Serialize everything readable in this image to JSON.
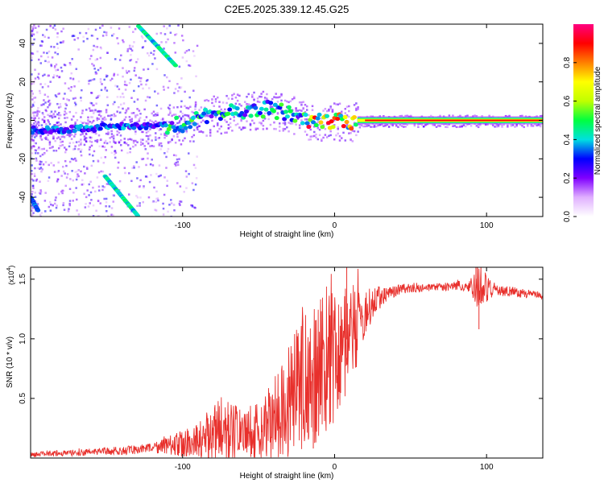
{
  "title": "C2E5.2025.339.12.45.G25",
  "chart_data": [
    {
      "type": "heatmap",
      "name": "spectrogram",
      "xlabel": "Height of straight line (km)",
      "ylabel": "Frequency (Hz)",
      "xlim": [
        -200,
        137
      ],
      "ylim": [
        -50,
        50
      ],
      "xticks": [
        -100,
        0,
        100
      ],
      "xtick_labels": [
        "-100",
        "0",
        "100"
      ],
      "yticks": [
        -40,
        -20,
        0,
        20,
        40
      ],
      "ytick_labels": [
        "-40",
        "-20",
        "0",
        "20",
        "40"
      ],
      "colorbar": {
        "label": "Normalized spectral amplitude",
        "range": [
          0,
          1
        ],
        "ticks": [
          0.0,
          0.2,
          0.4,
          0.6,
          0.8
        ],
        "tick_labels": [
          "0.0",
          "0.2",
          "0.4",
          "0.6",
          "0.8"
        ],
        "stops": [
          "#ffffff",
          "#e0b0ff",
          "#8000ff",
          "#0000ff",
          "#00e0e0",
          "#00ff40",
          "#c0ff00",
          "#ffff00",
          "#ff8000",
          "#ff0000",
          "#ff0080"
        ]
      },
      "main_trace": [
        {
          "x": -195,
          "y": -5
        },
        {
          "x": -180,
          "y": -5
        },
        {
          "x": -160,
          "y": -4
        },
        {
          "x": -140,
          "y": -3
        },
        {
          "x": -120,
          "y": -3
        },
        {
          "x": -100,
          "y": -2
        },
        {
          "x": -80,
          "y": 3
        },
        {
          "x": -60,
          "y": 5
        },
        {
          "x": -45,
          "y": 6
        },
        {
          "x": -30,
          "y": 4
        },
        {
          "x": -20,
          "y": 0
        },
        {
          "x": -10,
          "y": -1
        },
        {
          "x": 0,
          "y": 0
        },
        {
          "x": 10,
          "y": -1
        },
        {
          "x": 20,
          "y": 0
        },
        {
          "x": 60,
          "y": 0
        },
        {
          "x": 100,
          "y": 0
        },
        {
          "x": 137,
          "y": 0
        }
      ],
      "steady_band": {
        "x_start": 15,
        "x_end": 137,
        "y": 0,
        "amplitude": 0.9
      },
      "diagonal_traces": [
        {
          "points": [
            {
              "x": -129,
              "y": 49
            },
            {
              "x": -104,
              "y": 28
            }
          ],
          "amplitude": 0.35
        },
        {
          "points": [
            {
              "x": -151,
              "y": -29
            },
            {
              "x": -129,
              "y": -50
            }
          ],
          "amplitude": 0.35
        },
        {
          "points": [
            {
              "x": -200,
              "y": -40
            },
            {
              "x": -195,
              "y": -47
            }
          ],
          "amplitude": 0.25
        }
      ]
    },
    {
      "type": "line",
      "name": "snr",
      "xlabel": "Height of straight line (km)",
      "ylabel": "SNR (10 * v/v)",
      "multiplier_label": "(x10",
      "multiplier_exp": "4",
      "multiplier_close": ")",
      "xlim": [
        -200,
        137
      ],
      "ylim": [
        0,
        1.6
      ],
      "xticks": [
        -100,
        0,
        100
      ],
      "xtick_labels": [
        "-100",
        "0",
        "100"
      ],
      "yticks": [
        0.5,
        1.0,
        1.5
      ],
      "ytick_labels": [
        "0.5",
        "1.0",
        "1.5"
      ],
      "color": "#e8302c",
      "envelope": [
        {
          "x": -200,
          "y": 0.03
        },
        {
          "x": -160,
          "y": 0.05
        },
        {
          "x": -130,
          "y": 0.07
        },
        {
          "x": -110,
          "y": 0.1
        },
        {
          "x": -90,
          "y": 0.15
        },
        {
          "x": -75,
          "y": 0.22
        },
        {
          "x": -60,
          "y": 0.2
        },
        {
          "x": -45,
          "y": 0.25
        },
        {
          "x": -35,
          "y": 0.35
        },
        {
          "x": -25,
          "y": 0.55
        },
        {
          "x": -15,
          "y": 0.7
        },
        {
          "x": -5,
          "y": 0.8
        },
        {
          "x": 5,
          "y": 0.95
        },
        {
          "x": 15,
          "y": 1.1
        },
        {
          "x": 25,
          "y": 1.3
        },
        {
          "x": 35,
          "y": 1.38
        },
        {
          "x": 45,
          "y": 1.42
        },
        {
          "x": 60,
          "y": 1.43
        },
        {
          "x": 80,
          "y": 1.44
        },
        {
          "x": 90,
          "y": 1.43
        },
        {
          "x": 100,
          "y": 1.42
        },
        {
          "x": 120,
          "y": 1.39
        },
        {
          "x": 137,
          "y": 1.36
        }
      ],
      "noise": [
        {
          "x": -200,
          "a": 0.02
        },
        {
          "x": -120,
          "a": 0.04
        },
        {
          "x": -90,
          "a": 0.15
        },
        {
          "x": -75,
          "a": 0.3
        },
        {
          "x": -60,
          "a": 0.2
        },
        {
          "x": -40,
          "a": 0.35
        },
        {
          "x": -20,
          "a": 0.6
        },
        {
          "x": 0,
          "a": 0.6
        },
        {
          "x": 10,
          "a": 0.45
        },
        {
          "x": 20,
          "a": 0.2
        },
        {
          "x": 35,
          "a": 0.05
        },
        {
          "x": 60,
          "a": 0.03
        },
        {
          "x": 88,
          "a": 0.04
        },
        {
          "x": 95,
          "a": 0.2
        },
        {
          "x": 105,
          "a": 0.05
        },
        {
          "x": 137,
          "a": 0.03
        }
      ],
      "peaks": [
        {
          "x": -14,
          "y": 0.08
        },
        {
          "x": 8,
          "y": 1.62
        },
        {
          "x": 93,
          "y": 1.6
        },
        {
          "x": 95,
          "y": 1.08
        }
      ]
    }
  ]
}
